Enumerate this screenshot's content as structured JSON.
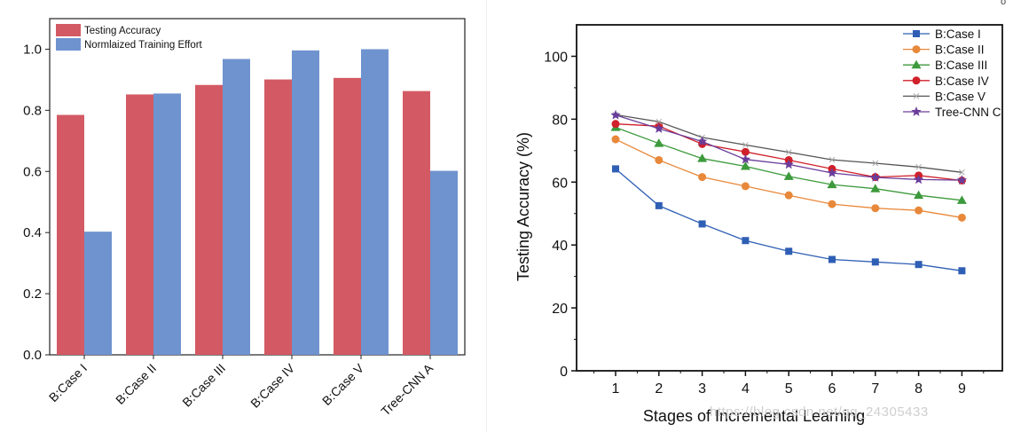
{
  "chart_data": [
    {
      "type": "bar",
      "categories": [
        "B:Case I",
        "B:Case II",
        "B:Case III",
        "B:Case IV",
        "B:Case V",
        "Tree-CNN A"
      ],
      "series": [
        {
          "name": "Testing Accuracy",
          "color": "#d35a64",
          "values": [
            0.785,
            0.852,
            0.883,
            0.901,
            0.906,
            0.863
          ]
        },
        {
          "name": "Normlaized Training Effort",
          "color": "#6f93cf",
          "values": [
            0.403,
            0.855,
            0.968,
            0.996,
            1.0,
            0.602
          ]
        }
      ],
      "ylim": [
        0,
        1.1
      ],
      "yticks": [
        "0.0",
        "0.2",
        "0.4",
        "0.6",
        "0.8",
        "1.0"
      ],
      "xlabel": "",
      "ylabel": "",
      "legend": "top-left"
    },
    {
      "type": "line",
      "x": [
        1,
        2,
        3,
        4,
        5,
        6,
        7,
        8,
        9
      ],
      "series": [
        {
          "name": "B:Case I",
          "color": "#2f5fb5",
          "marker": "square",
          "values": [
            64.2,
            52.5,
            46.7,
            41.4,
            38.0,
            35.4,
            34.6,
            33.8,
            31.8
          ]
        },
        {
          "name": "B:Case II",
          "color": "#e8883a",
          "marker": "circle",
          "values": [
            73.6,
            67.0,
            61.6,
            58.7,
            55.8,
            53.0,
            51.7,
            51.0,
            48.7
          ]
        },
        {
          "name": "B:Case III",
          "color": "#3c9a3c",
          "marker": "triangle",
          "values": [
            77.4,
            72.3,
            67.5,
            65.0,
            61.8,
            59.2,
            57.9,
            55.8,
            54.2
          ]
        },
        {
          "name": "B:Case IV",
          "color": "#d0202a",
          "marker": "circle",
          "values": [
            78.5,
            77.8,
            72.1,
            69.6,
            67.0,
            64.2,
            61.6,
            62.1,
            60.5
          ]
        },
        {
          "name": "B:Case V",
          "color": "#555555",
          "marker": "cross",
          "values": [
            81.4,
            79.2,
            74.2,
            71.8,
            69.5,
            67.1,
            66.0,
            64.8,
            63.1
          ]
        },
        {
          "name": "Tree-CNN C",
          "color": "#6a3d9a",
          "marker": "star",
          "values": [
            81.3,
            77.0,
            72.9,
            67.2,
            65.6,
            62.9,
            61.5,
            60.8,
            60.6
          ]
        }
      ],
      "ylim": [
        0,
        110
      ],
      "yticks": [
        "0",
        "20",
        "40",
        "60",
        "80",
        "100"
      ],
      "xticks": [
        "1",
        "2",
        "3",
        "4",
        "5",
        "6",
        "7",
        "8",
        "9"
      ],
      "xlabel": "Stages of Incremental Learning",
      "ylabel": "Testing Accuracy (%)",
      "legend": "top-right"
    }
  ],
  "watermark": "https://blog.csdn.net/qq_24305433",
  "corner_mark": "o"
}
